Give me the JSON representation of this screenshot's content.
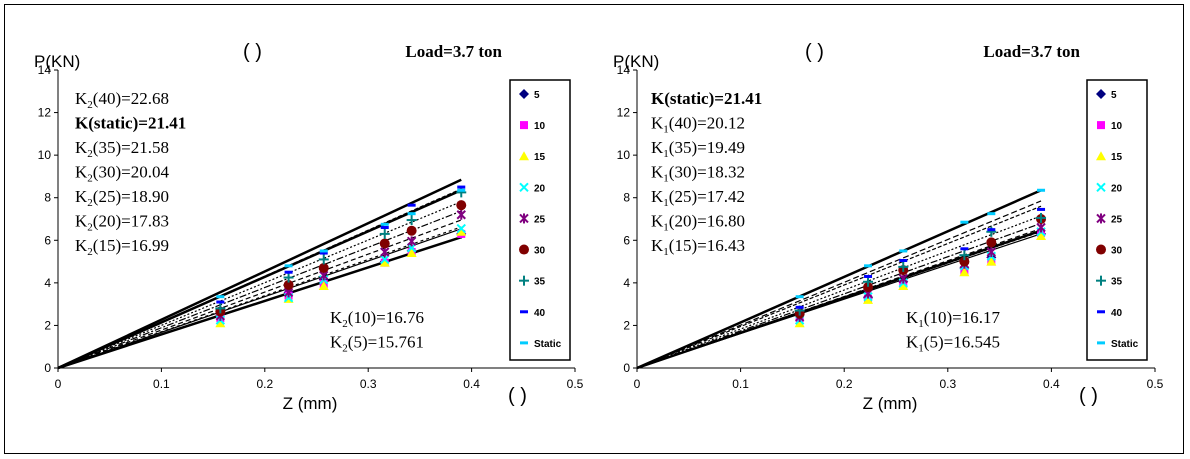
{
  "chart_data": [
    {
      "type": "scatter",
      "title": "",
      "load_label": "Load=3.7 ton",
      "paren_top": "( )",
      "paren_bottom": "( )",
      "xlabel": "Z (mm)",
      "ylabel": "P(KN)",
      "xlim": [
        0,
        0.5
      ],
      "ylim": [
        0,
        14
      ],
      "xticks": [
        "0",
        "0.1",
        "0.2",
        "0.3",
        "0.4",
        "0.5"
      ],
      "yticks": [
        "0",
        "2",
        "4",
        "6",
        "8",
        "10",
        "12",
        "14"
      ],
      "grid": false,
      "legend_position": "right",
      "x": [
        0.157,
        0.223,
        0.257,
        0.316,
        0.342,
        0.39
      ],
      "series": [
        {
          "name": "5",
          "color": "#000080",
          "marker": "diamond",
          "values": [
            2.55,
            3.55,
            4.15,
            5.0,
            5.5,
            6.3
          ]
        },
        {
          "name": "10",
          "color": "#ff00ff",
          "marker": "square",
          "values": [
            2.35,
            3.4,
            3.95,
            4.95,
            5.45,
            6.3
          ]
        },
        {
          "name": "15",
          "color": "#ffff00",
          "marker": "triangle",
          "values": [
            2.1,
            3.25,
            3.85,
            4.95,
            5.4,
            6.4
          ]
        },
        {
          "name": "20",
          "color": "#00ffff",
          "marker": "x",
          "values": [
            2.25,
            3.3,
            4.15,
            5.1,
            5.65,
            6.55
          ]
        },
        {
          "name": "25",
          "color": "#800080",
          "marker": "star",
          "values": [
            2.45,
            3.55,
            4.35,
            5.45,
            5.95,
            7.2
          ]
        },
        {
          "name": "30",
          "color": "#800000",
          "marker": "circle",
          "values": [
            2.65,
            3.9,
            4.7,
            5.85,
            6.45,
            7.65
          ]
        },
        {
          "name": "35",
          "color": "#008080",
          "marker": "plus",
          "values": [
            2.8,
            4.25,
            5.1,
            6.3,
            6.95,
            8.25
          ]
        },
        {
          "name": "40",
          "color": "#0000ff",
          "marker": "dash",
          "values": [
            3.1,
            4.5,
            5.4,
            6.6,
            7.65,
            8.5
          ]
        },
        {
          "name": "Static",
          "color": "#00ccff",
          "marker": "dash",
          "values": [
            3.35,
            4.8,
            5.5,
            6.75,
            7.25,
            8.35
          ]
        }
      ],
      "fit_lines": [
        {
          "label": "K2(40)=22.68",
          "k": 22.68
        },
        {
          "label": "K(static)=21.41",
          "k": 21.41
        },
        {
          "label": "K2(35)=21.58",
          "k": 21.58
        },
        {
          "label": "K2(30)=20.04",
          "k": 20.04
        },
        {
          "label": "K2(25)=18.90",
          "k": 18.9
        },
        {
          "label": "K2(20)=17.83",
          "k": 17.83
        },
        {
          "label": "K2(15)=16.99",
          "k": 16.99
        },
        {
          "label": "K2(10)=16.76",
          "k": 16.76
        },
        {
          "label": "K2(5)=15.761",
          "k": 15.761
        }
      ],
      "annotations_top": [
        {
          "pre": "K",
          "sub": "2",
          "post": "(40)=22.68",
          "bold": false
        },
        {
          "pre": "K(static)=21.41",
          "sub": "",
          "post": "",
          "bold": true
        },
        {
          "pre": "K",
          "sub": "2",
          "post": "(35)=21.58",
          "bold": false
        },
        {
          "pre": "K",
          "sub": "2",
          "post": "(30)=20.04",
          "bold": false
        },
        {
          "pre": "K",
          "sub": "2",
          "post": "(25)=18.90",
          "bold": false
        },
        {
          "pre": "K",
          "sub": "2",
          "post": "(20)=17.83",
          "bold": false
        },
        {
          "pre": "K",
          "sub": "2",
          "post": "(15)=16.99",
          "bold": false
        }
      ],
      "annotations_bottom": [
        {
          "pre": "K",
          "sub": "2",
          "post": "(10)=16.76",
          "bold": false
        },
        {
          "pre": "K",
          "sub": "2",
          "post": "(5)=15.761",
          "bold": false
        }
      ]
    },
    {
      "type": "scatter",
      "title": "",
      "load_label": "Load=3.7 ton",
      "paren_top": "( )",
      "paren_bottom": "( )",
      "xlabel": "Z (mm)",
      "ylabel": "P(KN)",
      "xlim": [
        0,
        0.5
      ],
      "ylim": [
        0,
        14
      ],
      "xticks": [
        "0",
        "0.1",
        "0.2",
        "0.3",
        "0.4",
        "0.5"
      ],
      "yticks": [
        "0",
        "2",
        "4",
        "6",
        "8",
        "10",
        "12",
        "14"
      ],
      "grid": false,
      "legend_position": "right",
      "x": [
        0.157,
        0.223,
        0.257,
        0.316,
        0.342,
        0.39
      ],
      "series": [
        {
          "name": "5",
          "color": "#000080",
          "marker": "diamond",
          "values": [
            2.5,
            3.3,
            4.05,
            4.7,
            5.2,
            6.3
          ]
        },
        {
          "name": "10",
          "color": "#ff00ff",
          "marker": "square",
          "values": [
            2.35,
            3.25,
            3.95,
            4.55,
            5.0,
            6.35
          ]
        },
        {
          "name": "15",
          "color": "#ffff00",
          "marker": "triangle",
          "values": [
            2.1,
            3.2,
            3.85,
            4.5,
            5.0,
            6.2
          ]
        },
        {
          "name": "20",
          "color": "#00ffff",
          "marker": "x",
          "values": [
            2.25,
            3.35,
            4.0,
            4.8,
            5.25,
            6.4
          ]
        },
        {
          "name": "25",
          "color": "#800080",
          "marker": "star",
          "values": [
            2.4,
            3.5,
            4.2,
            4.9,
            5.45,
            6.6
          ]
        },
        {
          "name": "30",
          "color": "#800000",
          "marker": "circle",
          "values": [
            2.55,
            3.8,
            4.6,
            5.0,
            5.9,
            7.0
          ]
        },
        {
          "name": "35",
          "color": "#008080",
          "marker": "plus",
          "values": [
            2.7,
            4.05,
            4.75,
            5.3,
            6.4,
            7.05
          ]
        },
        {
          "name": "40",
          "color": "#0000ff",
          "marker": "dash",
          "values": [
            2.85,
            4.3,
            5.05,
            5.6,
            6.5,
            7.45
          ]
        },
        {
          "name": "Static",
          "color": "#00ccff",
          "marker": "dash",
          "values": [
            3.35,
            4.8,
            5.5,
            6.85,
            7.25,
            8.35
          ]
        }
      ],
      "fit_lines": [
        {
          "label": "K(static)=21.41",
          "k": 21.41
        },
        {
          "label": "K1(40)=20.12",
          "k": 20.12
        },
        {
          "label": "K1(35)=19.49",
          "k": 19.49
        },
        {
          "label": "K1(30)=18.32",
          "k": 18.32
        },
        {
          "label": "K1(25)=17.42",
          "k": 17.42
        },
        {
          "label": "K1(20)=16.80",
          "k": 16.8
        },
        {
          "label": "K1(15)=16.43",
          "k": 16.43
        },
        {
          "label": "K1(10)=16.17",
          "k": 16.17
        },
        {
          "label": "K1(5)=16.545",
          "k": 16.545
        }
      ],
      "annotations_top": [
        {
          "pre": "K(static)=21.41",
          "sub": "",
          "post": "",
          "bold": true
        },
        {
          "pre": "K",
          "sub": "1",
          "post": "(40)=20.12",
          "bold": false
        },
        {
          "pre": "K",
          "sub": "1",
          "post": "(35)=19.49",
          "bold": false
        },
        {
          "pre": "K",
          "sub": "1",
          "post": "(30)=18.32",
          "bold": false
        },
        {
          "pre": "K",
          "sub": "1",
          "post": "(25)=17.42",
          "bold": false
        },
        {
          "pre": "K",
          "sub": "1",
          "post": "(20)=16.80",
          "bold": false
        },
        {
          "pre": "K",
          "sub": "1",
          "post": "(15)=16.43",
          "bold": false
        }
      ],
      "annotations_bottom": [
        {
          "pre": "K",
          "sub": "1",
          "post": "(10)=16.17",
          "bold": false
        },
        {
          "pre": "K",
          "sub": "1",
          "post": "(5)=16.545",
          "bold": false
        }
      ]
    }
  ]
}
